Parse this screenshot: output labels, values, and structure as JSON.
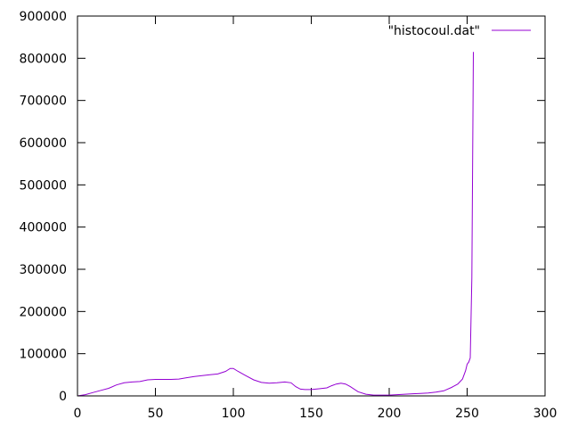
{
  "chart_data": {
    "type": "line",
    "title": "",
    "xlabel": "",
    "ylabel": "",
    "xlim": [
      0,
      300
    ],
    "ylim": [
      0,
      900000
    ],
    "x_ticks": [
      0,
      50,
      100,
      150,
      200,
      250,
      300
    ],
    "y_ticks": [
      0,
      100000,
      200000,
      300000,
      400000,
      500000,
      600000,
      700000,
      800000,
      900000
    ],
    "grid": false,
    "legend_position": "top-right",
    "colors": {
      "series": "#9400d3",
      "axis": "#000000"
    },
    "series": [
      {
        "name": "\"histocoul.dat\"",
        "x": [
          0,
          5,
          10,
          15,
          20,
          25,
          30,
          35,
          40,
          45,
          50,
          55,
          60,
          65,
          70,
          75,
          80,
          85,
          90,
          95,
          98,
          100,
          103,
          108,
          113,
          118,
          123,
          128,
          133,
          137,
          140,
          143,
          146,
          150,
          155,
          160,
          163,
          166,
          169,
          172,
          175,
          180,
          185,
          190,
          195,
          200,
          205,
          210,
          215,
          220,
          225,
          230,
          235,
          240,
          244,
          247,
          249,
          250,
          251,
          252,
          253,
          254
        ],
        "values": [
          0,
          3000,
          8000,
          13000,
          18000,
          26000,
          31000,
          33000,
          34000,
          38000,
          39000,
          39000,
          39000,
          40000,
          43000,
          46000,
          48000,
          50000,
          52000,
          58000,
          65000,
          65000,
          58000,
          48000,
          38000,
          32000,
          30000,
          31000,
          33000,
          31000,
          22000,
          16000,
          15000,
          15000,
          17000,
          19000,
          24000,
          28000,
          30000,
          28000,
          22000,
          10000,
          4000,
          2000,
          2000,
          2000,
          3000,
          4000,
          5000,
          6000,
          7000,
          9000,
          12000,
          20000,
          28000,
          40000,
          60000,
          75000,
          80000,
          90000,
          280000,
          815000
        ]
      }
    ]
  }
}
